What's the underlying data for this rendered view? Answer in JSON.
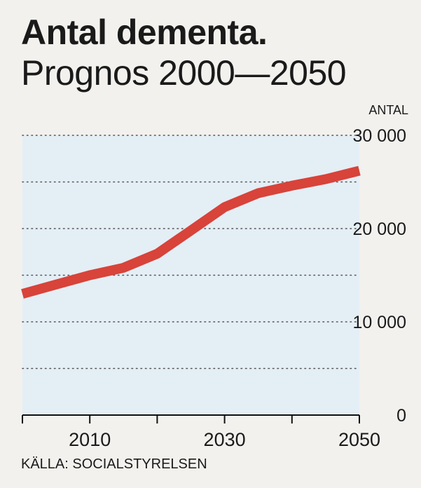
{
  "header": {
    "title": "Antal dementa.",
    "subtitle": "Prognos 2000—2050",
    "unit_label": "ANTAL"
  },
  "footer": {
    "source": "KÄLLA: SOCIALSTYRELSEN"
  },
  "colors": {
    "line": "#d8433a",
    "plot_bg": "#e4eef5",
    "gridline": "#555555"
  },
  "chart_data": {
    "type": "line",
    "title": "Antal dementa. Prognos 2000—2050",
    "xlabel": "",
    "ylabel": "ANTAL",
    "xlim": [
      2000,
      2050
    ],
    "ylim": [
      0,
      30000
    ],
    "x_ticks": [
      2000,
      2010,
      2020,
      2030,
      2040,
      2050
    ],
    "x_tick_labels": [
      {
        "x": 2010,
        "label": "2010"
      },
      {
        "x": 2030,
        "label": "2030"
      },
      {
        "x": 2050,
        "label": "2050"
      }
    ],
    "y_gridlines": [
      5000,
      10000,
      15000,
      20000,
      25000,
      30000
    ],
    "y_tick_labels": [
      {
        "y": 0,
        "label": "0"
      },
      {
        "y": 10000,
        "label": "10 000"
      },
      {
        "y": 20000,
        "label": "20 000"
      },
      {
        "y": 30000,
        "label": "30 000"
      }
    ],
    "series": [
      {
        "name": "Antal dementa",
        "x": [
          2000,
          2005,
          2010,
          2015,
          2020,
          2025,
          2030,
          2035,
          2040,
          2045,
          2050
        ],
        "y": [
          13000,
          14000,
          15000,
          15800,
          17300,
          19800,
          22300,
          23800,
          24600,
          25300,
          26200
        ]
      }
    ]
  }
}
